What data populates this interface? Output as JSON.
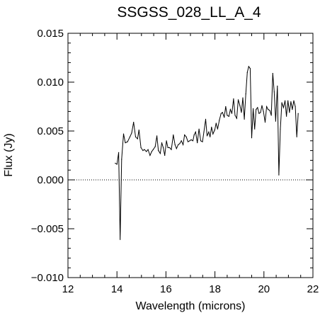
{
  "chart_data": {
    "type": "line",
    "title": "SSGSS_028_LL_A_4",
    "xlabel": "Wavelength (microns)",
    "ylabel": "Flux (Jy)",
    "xlim": [
      12,
      22
    ],
    "ylim": [
      -0.01,
      0.015
    ],
    "x_ticks": [
      12,
      14,
      16,
      18,
      20,
      22
    ],
    "x_tick_labels": [
      "12",
      "14",
      "16",
      "18",
      "20",
      "22"
    ],
    "y_ticks": [
      -0.01,
      -0.005,
      0.0,
      0.005,
      0.01,
      0.015
    ],
    "y_tick_labels": [
      "−0.010",
      "−0.005",
      "0.000",
      "0.005",
      "0.010",
      "0.015"
    ],
    "grid": false,
    "zero_line": {
      "y": 0,
      "style": "dotted"
    },
    "series": [
      {
        "x": [
          13.93,
          14.0,
          14.07,
          14.13,
          14.19,
          14.27,
          14.34,
          14.43,
          14.53,
          14.6,
          14.68,
          14.76,
          14.84,
          14.9,
          14.98,
          15.06,
          15.12,
          15.2,
          15.27,
          15.35,
          15.42,
          15.48,
          15.56,
          15.63,
          15.69,
          15.77,
          15.83,
          15.89,
          15.95,
          16.02,
          16.08,
          16.15,
          16.22,
          16.3,
          16.37,
          16.43,
          16.5,
          16.56,
          16.63,
          16.7,
          16.76,
          16.83,
          16.9,
          16.97,
          17.03,
          17.1,
          17.15,
          17.21,
          17.28,
          17.35,
          17.42,
          17.49,
          17.55,
          17.62,
          17.68,
          17.75,
          17.8,
          17.86,
          17.92,
          17.99,
          18.05,
          18.11,
          18.18,
          18.25,
          18.31,
          18.38,
          18.44,
          18.5,
          18.57,
          18.63,
          18.69,
          18.76,
          18.82,
          18.89,
          18.95,
          19.02,
          19.08,
          19.14,
          19.2,
          19.26,
          19.32,
          19.38,
          19.44,
          19.5,
          19.56,
          19.62,
          19.68,
          19.74,
          19.8,
          19.86,
          19.92,
          19.98,
          20.05,
          20.11,
          20.17,
          20.24,
          20.3,
          20.36,
          20.42,
          20.48,
          20.55,
          20.61,
          20.67,
          20.73,
          20.8,
          20.86,
          20.92,
          20.98,
          21.04,
          21.1,
          21.16,
          21.22,
          21.28,
          21.34,
          21.4
        ],
        "y": [
          0.0017,
          0.0016,
          0.0028,
          -0.0061,
          0.0021,
          0.0047,
          0.0038,
          0.0039,
          0.0044,
          0.0048,
          0.0059,
          0.0044,
          0.0042,
          0.0051,
          0.0033,
          0.003,
          0.0031,
          0.0029,
          0.0031,
          0.0025,
          0.0029,
          0.0031,
          0.0034,
          0.0045,
          0.003,
          0.0027,
          0.0038,
          0.0033,
          0.0025,
          0.004,
          0.0033,
          0.0033,
          0.0031,
          0.0046,
          0.0036,
          0.0032,
          0.0036,
          0.0037,
          0.004,
          0.0036,
          0.0046,
          0.0044,
          0.0039,
          0.004,
          0.0041,
          0.004,
          0.0046,
          0.0049,
          0.0038,
          0.0052,
          0.004,
          0.0039,
          0.0049,
          0.0062,
          0.0045,
          0.0049,
          0.0044,
          0.0054,
          0.0047,
          0.0051,
          0.0058,
          0.0052,
          0.0061,
          0.0068,
          0.0069,
          0.0064,
          0.0075,
          0.0066,
          0.0065,
          0.0072,
          0.0068,
          0.0083,
          0.0066,
          0.0063,
          0.0082,
          0.0076,
          0.0069,
          0.0084,
          0.0062,
          0.0088,
          0.011,
          0.0116,
          0.0114,
          0.0043,
          0.0073,
          0.0052,
          0.0072,
          0.0074,
          0.0068,
          0.0069,
          0.0076,
          0.007,
          0.0059,
          0.0075,
          0.0072,
          0.0071,
          0.0066,
          0.0109,
          0.009,
          0.006,
          0.0096,
          0.0005,
          0.0052,
          0.0079,
          0.0074,
          0.0081,
          0.0065,
          0.0081,
          0.0069,
          0.008,
          0.0072,
          0.0081,
          0.0075,
          0.0044,
          0.0068
        ]
      }
    ]
  }
}
